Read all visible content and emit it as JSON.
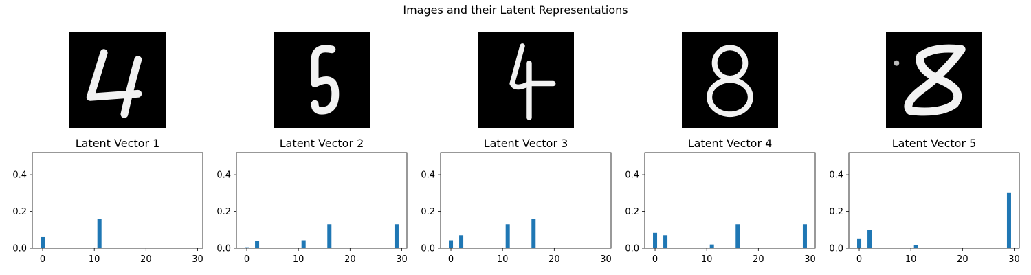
{
  "figure": {
    "suptitle": "Images and their Latent Representations"
  },
  "digits": [
    {
      "digit": "4"
    },
    {
      "digit": "5"
    },
    {
      "digit": "4"
    },
    {
      "digit": "8"
    },
    {
      "digit": "8"
    }
  ],
  "colors": {
    "bar": "#1f77b4",
    "digit_bg": "#000000",
    "digit_stroke": "#f2f2f2"
  },
  "chart_data": [
    {
      "type": "bar",
      "title": "Latent Vector 1",
      "xlabel": "",
      "ylabel": "",
      "xlim": [
        -2,
        31
      ],
      "ylim": [
        0,
        0.52
      ],
      "xticks": [
        0,
        10,
        20,
        30
      ],
      "yticks": [
        0.0,
        0.2,
        0.4
      ],
      "xtick_labels": [
        "0",
        "10",
        "20",
        "30"
      ],
      "ytick_labels": [
        "0.0",
        "0.2",
        "0.4"
      ],
      "x": [
        0,
        11
      ],
      "values": [
        0.06,
        0.16
      ]
    },
    {
      "type": "bar",
      "title": "Latent Vector 2",
      "xlabel": "",
      "ylabel": "",
      "xlim": [
        -2,
        31
      ],
      "ylim": [
        0,
        0.52
      ],
      "xticks": [
        0,
        10,
        20,
        30
      ],
      "yticks": [
        0.0,
        0.2,
        0.4
      ],
      "xtick_labels": [
        "0",
        "10",
        "20",
        "30"
      ],
      "ytick_labels": [
        "0.0",
        "0.2",
        "0.4"
      ],
      "x": [
        0,
        2,
        11,
        16,
        29
      ],
      "values": [
        0.005,
        0.04,
        0.043,
        0.13,
        0.13
      ]
    },
    {
      "type": "bar",
      "title": "Latent Vector 3",
      "xlabel": "",
      "ylabel": "",
      "xlim": [
        -2,
        31
      ],
      "ylim": [
        0,
        0.52
      ],
      "xticks": [
        0,
        10,
        20,
        30
      ],
      "yticks": [
        0.0,
        0.2,
        0.4
      ],
      "xtick_labels": [
        "0",
        "10",
        "20",
        "30"
      ],
      "ytick_labels": [
        "0.0",
        "0.2",
        "0.4"
      ],
      "x": [
        0,
        2,
        11,
        16
      ],
      "values": [
        0.043,
        0.07,
        0.13,
        0.16
      ]
    },
    {
      "type": "bar",
      "title": "Latent Vector 4",
      "xlabel": "",
      "ylabel": "",
      "xlim": [
        -2,
        31
      ],
      "ylim": [
        0,
        0.52
      ],
      "xticks": [
        0,
        10,
        20,
        30
      ],
      "yticks": [
        0.0,
        0.2,
        0.4
      ],
      "xtick_labels": [
        "0",
        "10",
        "20",
        "30"
      ],
      "ytick_labels": [
        "0.0",
        "0.2",
        "0.4"
      ],
      "x": [
        0,
        2,
        11,
        16,
        29
      ],
      "values": [
        0.083,
        0.07,
        0.02,
        0.13,
        0.13
      ]
    },
    {
      "type": "bar",
      "title": "Latent Vector 5",
      "xlabel": "",
      "ylabel": "",
      "xlim": [
        -2,
        31
      ],
      "ylim": [
        0,
        0.52
      ],
      "xticks": [
        0,
        10,
        20,
        30
      ],
      "yticks": [
        0.0,
        0.2,
        0.4
      ],
      "xtick_labels": [
        "0",
        "10",
        "20",
        "30"
      ],
      "ytick_labels": [
        "0.0",
        "0.2",
        "0.4"
      ],
      "x": [
        0,
        2,
        11,
        29
      ],
      "values": [
        0.053,
        0.1,
        0.015,
        0.3
      ]
    }
  ]
}
